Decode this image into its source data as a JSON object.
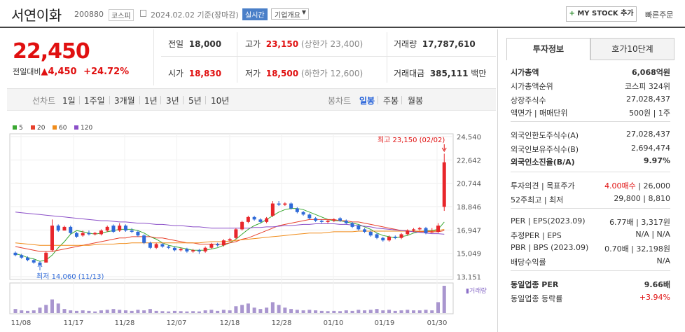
{
  "header": {
    "stock_name": "서연이화",
    "stock_code": "200880",
    "market": "코스피",
    "date_text": "2024.02.02 기준(장마감)",
    "live_label": "실시간",
    "company_label": "기업개요",
    "mystock_plus": "+",
    "mystock_label": "MY STOCK 추가",
    "quick_order_label": "빠른주문"
  },
  "price": {
    "current": "22,450",
    "change_label": "전일대비",
    "change_arrow": "▲",
    "change": "4,450",
    "change_pct": "+24.72%"
  },
  "stats": {
    "prev_label": "전일",
    "prev": "18,000",
    "high_label": "고가",
    "high": "23,150",
    "upper_limit": "(상한가 23,400)",
    "volume_label": "거래량",
    "volume": "17,787,610",
    "open_label": "시가",
    "open": "18,830",
    "low_label": "저가",
    "low": "18,500",
    "lower_limit": "(하한가 12,600)",
    "amount_label": "거래대금",
    "amount": "385,111",
    "amount_unit": "백만"
  },
  "period_tabs": {
    "line_label": "선차트",
    "line_items": [
      "1일",
      "1주일",
      "3개월",
      "1년",
      "3년",
      "5년",
      "10년"
    ],
    "candle_label": "봉차트",
    "candle_items": [
      "일봉",
      "주봉",
      "월봉"
    ],
    "active_candle": "일봉"
  },
  "legend": [
    {
      "label": "5",
      "color": "#3aa832"
    },
    {
      "label": "20",
      "color": "#e8412c"
    },
    {
      "label": "60",
      "color": "#f08c1a"
    },
    {
      "label": "120",
      "color": "#8b4fc8"
    }
  ],
  "chart_data": {
    "type": "candlestick",
    "y_ticks": [
      "24,540",
      "22,642",
      "20,744",
      "18,846",
      "16,947",
      "15,049",
      "13,151"
    ],
    "ylim": [
      13151,
      24540
    ],
    "x_labels": [
      "11/08",
      "11/17",
      "11/28",
      "12/07",
      "12/18",
      "12/28",
      "01/10",
      "01/19",
      "01/30"
    ],
    "max_annotation": "최고 23,150 (02/02)",
    "min_annotation": "최저 14,060 (11/13)",
    "volume_label": "거래량",
    "candles": [
      [
        15100,
        14900,
        15200,
        14800
      ],
      [
        14900,
        14700,
        15000,
        14600
      ],
      [
        14700,
        14500,
        14800,
        14400
      ],
      [
        14500,
        14300,
        14600,
        14200
      ],
      [
        14300,
        14100,
        14400,
        14060
      ],
      [
        14300,
        15100,
        15200,
        14300
      ],
      [
        15300,
        17300,
        17800,
        15200
      ],
      [
        17300,
        16900,
        17400,
        16800
      ],
      [
        16900,
        17200,
        17300,
        16900
      ],
      [
        17200,
        16700,
        17300,
        16600
      ],
      [
        16700,
        16400,
        16800,
        16300
      ],
      [
        16500,
        16700,
        16900,
        16400
      ],
      [
        16700,
        16600,
        16900,
        16500
      ],
      [
        16600,
        16700,
        16800,
        16500
      ],
      [
        16600,
        16900,
        17000,
        16500
      ],
      [
        16900,
        17200,
        17300,
        16800
      ],
      [
        17300,
        16800,
        17400,
        16700
      ],
      [
        16900,
        17300,
        17500,
        16800
      ],
      [
        17300,
        16900,
        17400,
        16800
      ],
      [
        16900,
        16800,
        17100,
        16700
      ],
      [
        16800,
        16500,
        16900,
        16400
      ],
      [
        16500,
        15900,
        16600,
        15800
      ],
      [
        15900,
        15500,
        16000,
        15400
      ],
      [
        15500,
        15800,
        15900,
        15400
      ],
      [
        15800,
        15600,
        15900,
        15500
      ],
      [
        15600,
        15500,
        15700,
        15400
      ],
      [
        15500,
        15300,
        15600,
        15200
      ],
      [
        15300,
        15400,
        15500,
        15200
      ],
      [
        15400,
        15200,
        15500,
        15100
      ],
      [
        15200,
        15300,
        15400,
        15100
      ],
      [
        15300,
        15200,
        15400,
        15000
      ],
      [
        15200,
        15500,
        15600,
        15100
      ],
      [
        15500,
        15800,
        15900,
        15400
      ],
      [
        15800,
        15700,
        15900,
        15600
      ],
      [
        15700,
        16100,
        16200,
        15600
      ],
      [
        16100,
        16200,
        16300,
        16000
      ],
      [
        16300,
        17000,
        17100,
        16200
      ],
      [
        17000,
        17600,
        17700,
        16900
      ],
      [
        17600,
        18000,
        18100,
        17500
      ],
      [
        18000,
        17800,
        18100,
        17700
      ],
      [
        17800,
        17600,
        17900,
        17500
      ],
      [
        17600,
        17900,
        18000,
        17500
      ],
      [
        18100,
        19100,
        19300,
        18000
      ],
      [
        19100,
        19000,
        19300,
        18900
      ],
      [
        19000,
        19100,
        19200,
        18900
      ],
      [
        19100,
        18700,
        19200,
        18600
      ],
      [
        18700,
        18400,
        18800,
        18300
      ],
      [
        18400,
        18200,
        18500,
        18100
      ],
      [
        18200,
        17900,
        18300,
        17800
      ],
      [
        17900,
        17700,
        18000,
        17600
      ],
      [
        17700,
        17600,
        17800,
        17500
      ],
      [
        17600,
        17700,
        17800,
        17500
      ],
      [
        17700,
        17800,
        17900,
        17600
      ],
      [
        17900,
        17700,
        18000,
        17600
      ],
      [
        17700,
        17500,
        17800,
        17400
      ],
      [
        17500,
        17200,
        17600,
        17100
      ],
      [
        17300,
        17000,
        17400,
        16900
      ],
      [
        17000,
        16800,
        17100,
        16700
      ],
      [
        16800,
        16500,
        16900,
        16400
      ],
      [
        16600,
        16300,
        16700,
        16200
      ],
      [
        16300,
        16100,
        16400,
        16000
      ],
      [
        16100,
        16400,
        16500,
        16000
      ],
      [
        16400,
        16300,
        16500,
        16200
      ],
      [
        16300,
        16600,
        16700,
        16200
      ],
      [
        16600,
        16900,
        17000,
        16500
      ],
      [
        16900,
        17000,
        17100,
        16800
      ],
      [
        17000,
        17100,
        17200,
        16900
      ],
      [
        17100,
        16700,
        17200,
        16600
      ],
      [
        16800,
        16800,
        17100,
        16700
      ],
      [
        16800,
        17300,
        17500,
        16700
      ],
      [
        18830,
        22450,
        23150,
        18500
      ]
    ],
    "volume": [
      0.15,
      0.1,
      0.08,
      0.1,
      0.2,
      0.3,
      0.5,
      0.35,
      0.15,
      0.1,
      0.08,
      0.1,
      0.08,
      0.06,
      0.1,
      0.12,
      0.15,
      0.12,
      0.1,
      0.08,
      0.12,
      0.1,
      0.15,
      0.08,
      0.07,
      0.06,
      0.08,
      0.07,
      0.06,
      0.07,
      0.06,
      0.1,
      0.12,
      0.08,
      0.12,
      0.1,
      0.25,
      0.3,
      0.35,
      0.2,
      0.15,
      0.2,
      0.4,
      0.3,
      0.2,
      0.15,
      0.12,
      0.1,
      0.12,
      0.1,
      0.08,
      0.07,
      0.08,
      0.07,
      0.1,
      0.08,
      0.12,
      0.1,
      0.12,
      0.15,
      0.1,
      0.12,
      0.08,
      0.1,
      0.12,
      0.1,
      0.1,
      0.12,
      0.1,
      0.4,
      1.0
    ],
    "ma": {
      "5": [
        15000,
        14900,
        14700,
        14600,
        14400,
        14500,
        14900,
        15500,
        16000,
        16600,
        16900,
        16800,
        16700,
        16600,
        16700,
        16800,
        16900,
        17000,
        17000,
        17000,
        16900,
        16700,
        16400,
        16200,
        15900,
        15700,
        15600,
        15500,
        15400,
        15300,
        15300,
        15300,
        15400,
        15500,
        15700,
        15900,
        16200,
        16600,
        17000,
        17300,
        17500,
        17800,
        18100,
        18400,
        18600,
        18700,
        18700,
        18600,
        18400,
        18200,
        18000,
        17800,
        17700,
        17700,
        17600,
        17500,
        17400,
        17200,
        17000,
        16700,
        16500,
        16400,
        16300,
        16400,
        16500,
        16700,
        16800,
        16900,
        16900,
        17000,
        17600
      ],
      "20": [
        15600,
        15500,
        15400,
        15300,
        15200,
        15200,
        15200,
        15300,
        15400,
        15500,
        15600,
        15700,
        15800,
        15900,
        16000,
        16100,
        16200,
        16300,
        16300,
        16400,
        16400,
        16400,
        16400,
        16300,
        16300,
        16200,
        16100,
        16000,
        15900,
        15900,
        15800,
        15800,
        15800,
        15800,
        15800,
        15900,
        16000,
        16200,
        16300,
        16500,
        16700,
        16900,
        17100,
        17300,
        17400,
        17500,
        17600,
        17700,
        17800,
        17800,
        17800,
        17800,
        17800,
        17700,
        17700,
        17600,
        17600,
        17500,
        17400,
        17300,
        17200,
        17100,
        17000,
        16900,
        16900,
        16800,
        16800,
        16800,
        16800,
        16800,
        16900
      ],
      "60": [
        15900,
        15850,
        15800,
        15750,
        15700,
        15700,
        15700,
        15700,
        15700,
        15700,
        15700,
        15700,
        15700,
        15750,
        15800,
        15800,
        15800,
        15850,
        15850,
        15900,
        15900,
        15900,
        15900,
        15900,
        15900,
        15900,
        15900,
        15900,
        15900,
        15900,
        15900,
        15950,
        16000,
        16000,
        16000,
        16050,
        16100,
        16150,
        16200,
        16250,
        16300,
        16350,
        16400,
        16450,
        16500,
        16550,
        16600,
        16650,
        16700,
        16700,
        16700,
        16750,
        16800,
        16800,
        16800,
        16800,
        16850,
        16850,
        16850,
        16850,
        16850,
        16850,
        16850,
        16850,
        16850,
        16850,
        16850,
        16850,
        16850,
        16900,
        17000
      ],
      "120": [
        18400,
        18350,
        18300,
        18250,
        18200,
        18150,
        18100,
        18050,
        18000,
        17950,
        17900,
        17850,
        17800,
        17750,
        17700,
        17700,
        17650,
        17600,
        17600,
        17550,
        17500,
        17500,
        17450,
        17400,
        17400,
        17350,
        17300,
        17300,
        17250,
        17200,
        17200,
        17150,
        17100,
        17100,
        17100,
        17100,
        17100,
        17100,
        17100,
        17150,
        17150,
        17200,
        17200,
        17250,
        17300,
        17300,
        17350,
        17400,
        17400,
        17450,
        17450,
        17450,
        17450,
        17400,
        17400,
        17350,
        17300,
        17250,
        17200,
        17100,
        17050,
        17000,
        16950,
        16900,
        16850,
        16800,
        16750,
        16700,
        16650,
        16650,
        16600
      ]
    }
  },
  "right_panel": {
    "tab_active": "투자정보",
    "tab_other": "호가10단계",
    "rows": [
      {
        "k": "시가총액",
        "v": "6,068억원",
        "bold": true
      },
      {
        "k": "시가총액순위",
        "v": "코스피 324위"
      },
      {
        "k": "상장주식수",
        "v": "27,028,437"
      },
      {
        "k": "액면가 | 매매단위",
        "v": "500원 | 1주"
      },
      {
        "k": "외국인한도주식수(A)",
        "v": "27,028,437"
      },
      {
        "k": "외국인보유주식수(B)",
        "v": "2,694,474"
      },
      {
        "k": "외국인소진율(B/A)",
        "v": "9.97%",
        "bold": true
      },
      {
        "k": "투자의견 | 목표주가",
        "v_red": "4.00매수",
        "v": "26,000"
      },
      {
        "k": "52주최고 | 최저",
        "v": "29,800 | 8,810"
      },
      {
        "k": "PER | EPS(2023.09)",
        "v": "6.77배 | 3,317원"
      },
      {
        "k": "추정PER | EPS",
        "v": "N/A | N/A"
      },
      {
        "k": "PBR | BPS (2023.09)",
        "v": "0.70배 | 32,198원"
      },
      {
        "k": "배당수익률",
        "v": "N/A"
      },
      {
        "k": "동일업종 PER",
        "v": "9.66배",
        "bold": true
      },
      {
        "k": "동일업종 등락률",
        "v_red": "+3.94%"
      }
    ]
  }
}
